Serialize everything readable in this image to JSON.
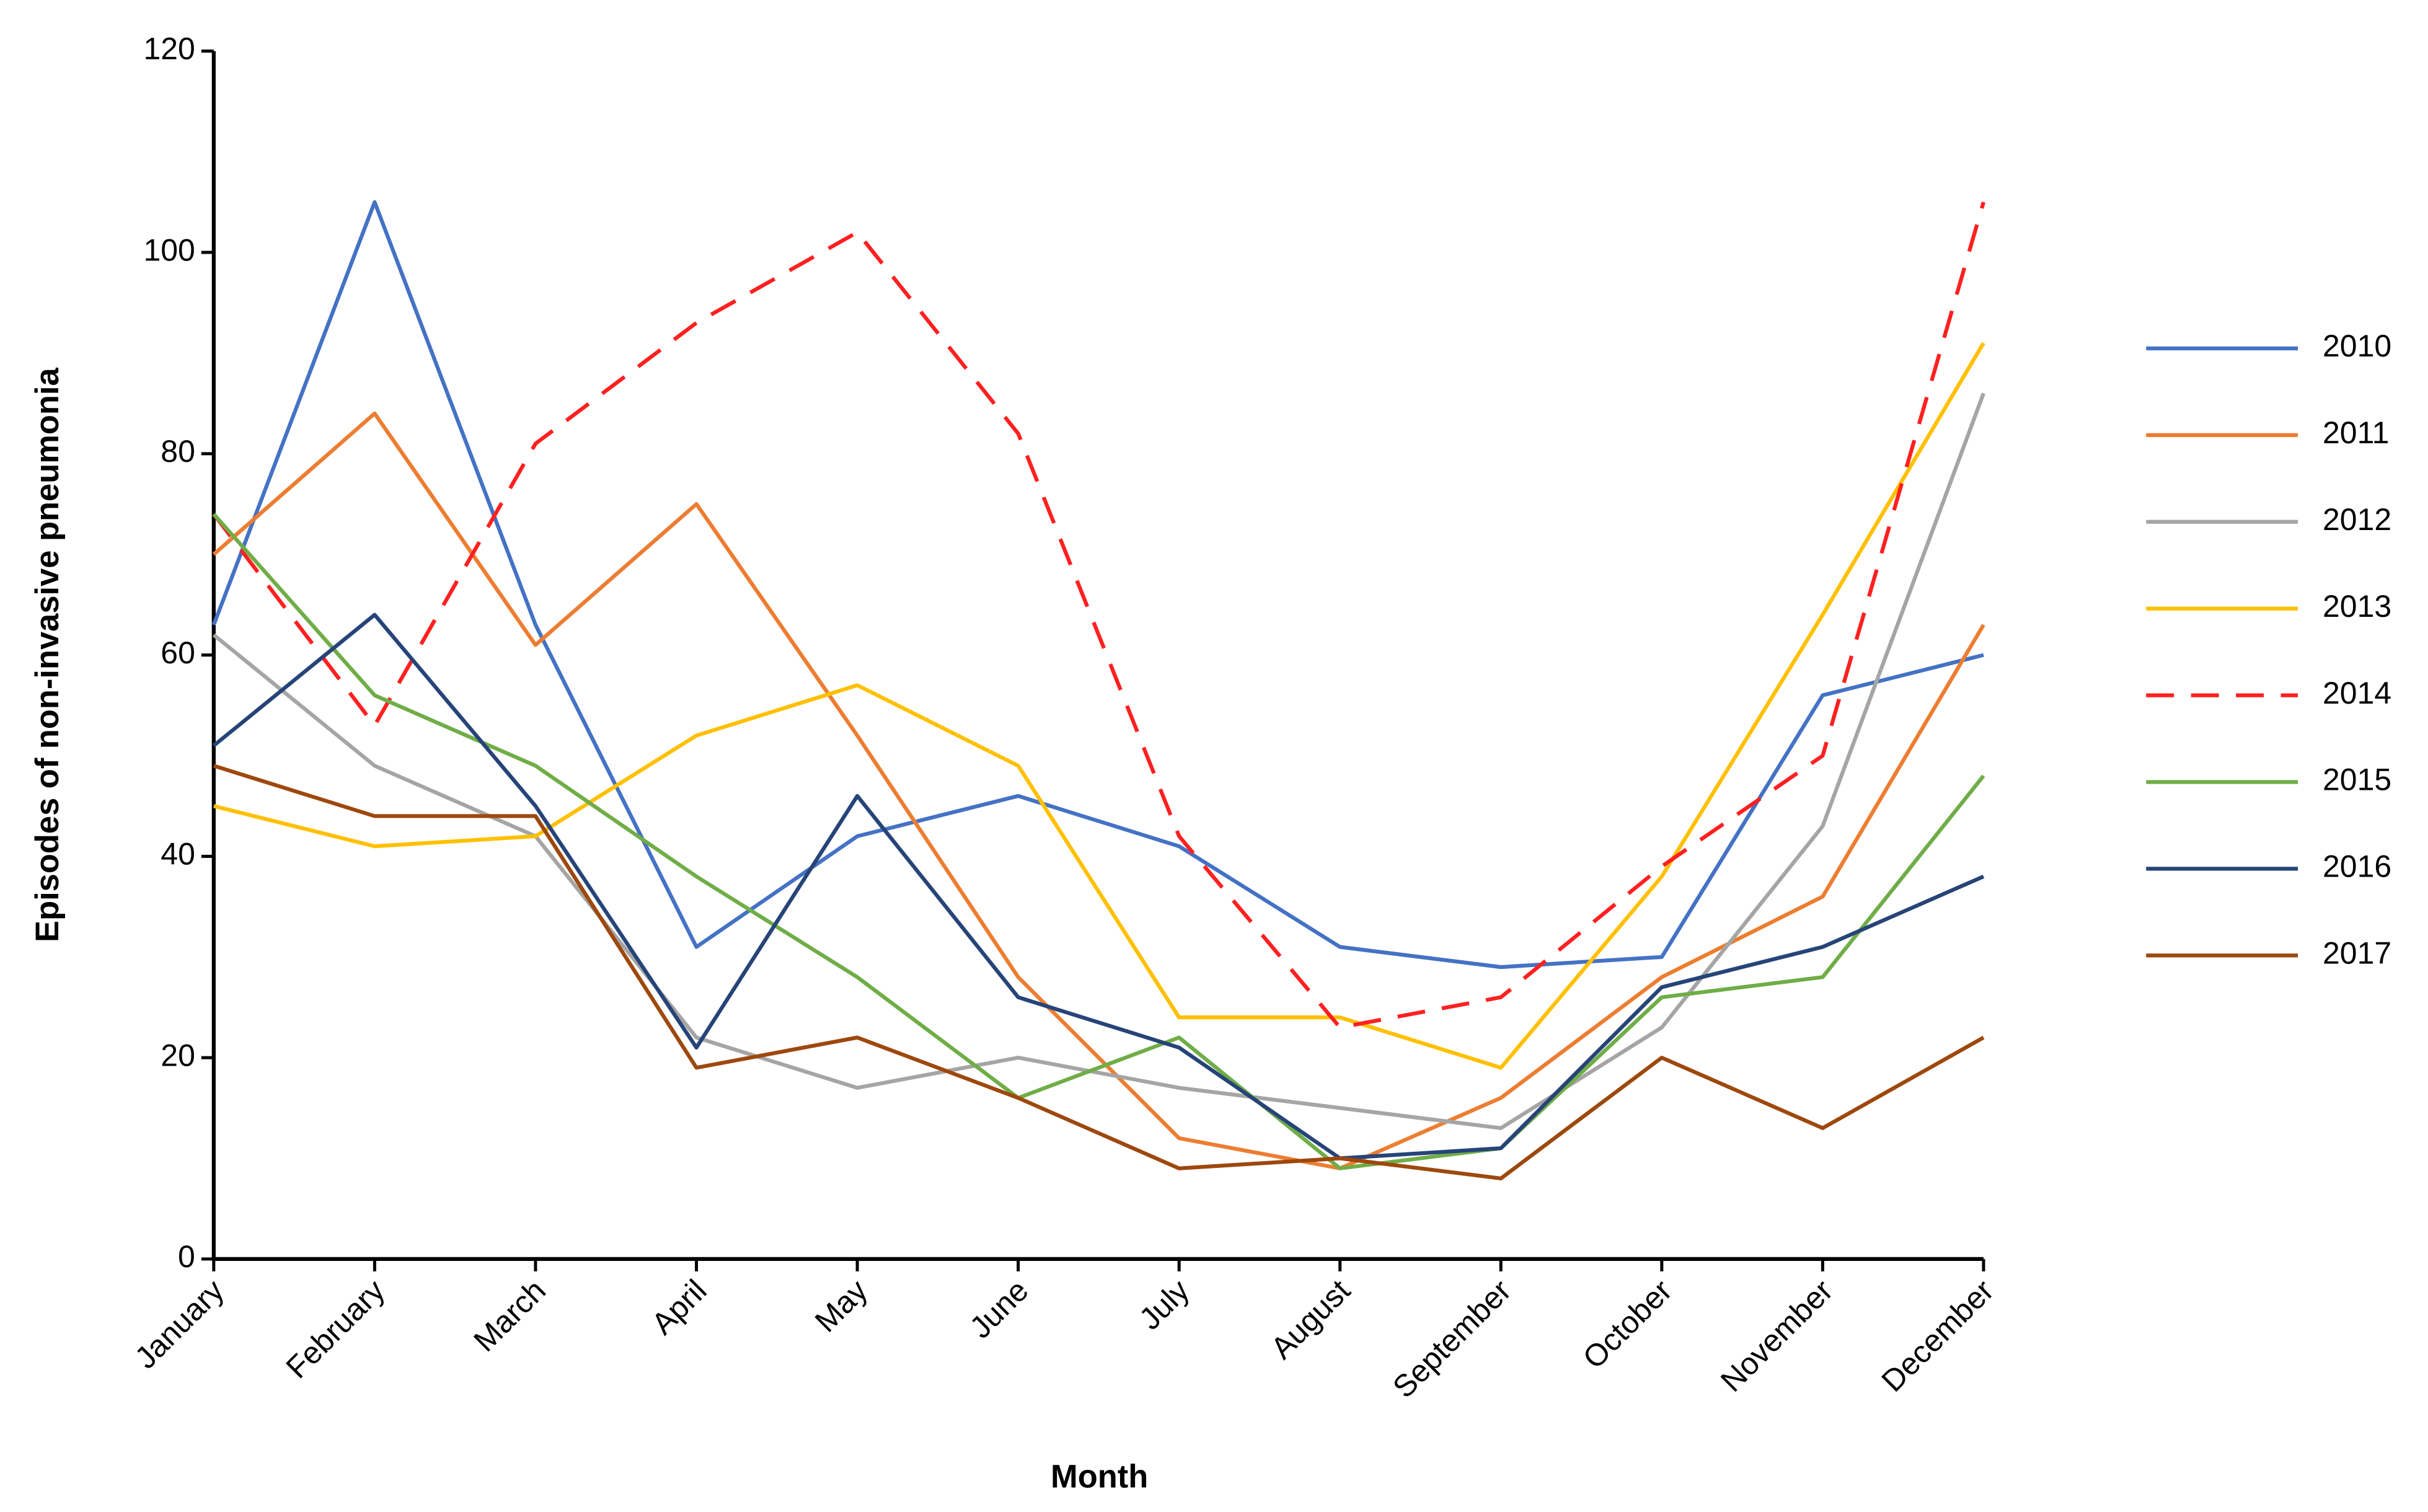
{
  "chart_data": {
    "type": "line",
    "x_label": "Month",
    "y_label": "Episodes of non-invasive pneumonia",
    "categories": [
      "January",
      "February",
      "March",
      "April",
      "May",
      "June",
      "July",
      "August",
      "September",
      "October",
      "November",
      "December"
    ],
    "ylim": [
      0,
      120
    ],
    "yticks": [
      0,
      20,
      40,
      60,
      80,
      100,
      120
    ],
    "grid": false,
    "legend": "right",
    "series": [
      {
        "name": "2010",
        "color": "#4472c4",
        "values": [
          63,
          105,
          63,
          31,
          42,
          46,
          41,
          31,
          29,
          30,
          56,
          60
        ]
      },
      {
        "name": "2011",
        "color": "#ed7d31",
        "values": [
          70,
          84,
          61,
          75,
          52,
          28,
          12,
          9,
          16,
          28,
          36,
          63
        ]
      },
      {
        "name": "2012",
        "color": "#a5a5a5",
        "values": [
          62,
          49,
          42,
          22,
          17,
          20,
          17,
          15,
          13,
          23,
          43,
          86
        ]
      },
      {
        "name": "2013",
        "color": "#ffc000",
        "values": [
          45,
          41,
          42,
          52,
          57,
          49,
          24,
          24,
          19,
          38,
          64,
          91
        ]
      },
      {
        "name": "2014",
        "color": "#ff2020",
        "dashed": true,
        "values": [
          74,
          53,
          81,
          93,
          102,
          82,
          42,
          23,
          26,
          39,
          50,
          105
        ]
      },
      {
        "name": "2015",
        "color": "#70ad47",
        "values": [
          74,
          56,
          49,
          38,
          28,
          16,
          22,
          9,
          11,
          26,
          28,
          48
        ]
      },
      {
        "name": "2016",
        "color": "#264478",
        "values": [
          51,
          64,
          45,
          21,
          46,
          26,
          21,
          10,
          11,
          27,
          31,
          38
        ]
      },
      {
        "name": "2017",
        "color": "#9e480e",
        "values": [
          49,
          44,
          44,
          19,
          22,
          16,
          9,
          10,
          8,
          20,
          13,
          22
        ]
      }
    ]
  }
}
